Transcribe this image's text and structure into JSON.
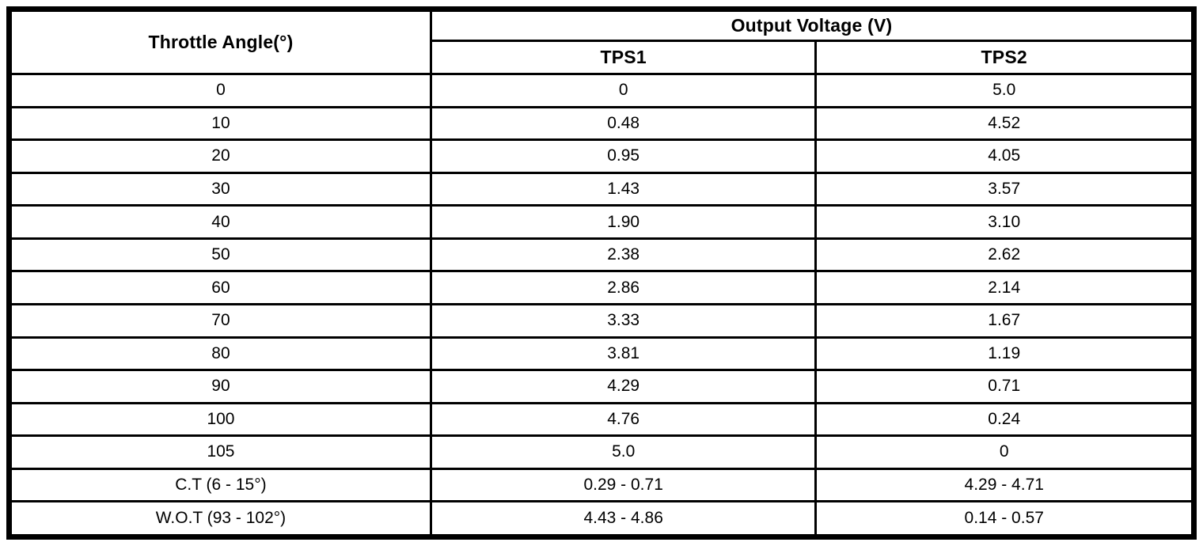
{
  "table": {
    "header": {
      "angle_label": "Throttle Angle(°)",
      "group_label": "Output Voltage (V)",
      "sub1_label": "TPS1",
      "sub2_label": "TPS2"
    },
    "rows": [
      {
        "angle": "0",
        "tps1": "0",
        "tps2": "5.0"
      },
      {
        "angle": "10",
        "tps1": "0.48",
        "tps2": "4.52"
      },
      {
        "angle": "20",
        "tps1": "0.95",
        "tps2": "4.05"
      },
      {
        "angle": "30",
        "tps1": "1.43",
        "tps2": "3.57"
      },
      {
        "angle": "40",
        "tps1": "1.90",
        "tps2": "3.10"
      },
      {
        "angle": "50",
        "tps1": "2.38",
        "tps2": "2.62"
      },
      {
        "angle": "60",
        "tps1": "2.86",
        "tps2": "2.14"
      },
      {
        "angle": "70",
        "tps1": "3.33",
        "tps2": "1.67"
      },
      {
        "angle": "80",
        "tps1": "3.81",
        "tps2": "1.19"
      },
      {
        "angle": "90",
        "tps1": "4.29",
        "tps2": "0.71"
      },
      {
        "angle": "100",
        "tps1": "4.76",
        "tps2": "0.24"
      },
      {
        "angle": "105",
        "tps1": "5.0",
        "tps2": "0"
      },
      {
        "angle": "C.T (6 - 15°)",
        "tps1": "0.29 - 0.71",
        "tps2": "4.29 - 4.71"
      },
      {
        "angle": "W.O.T (93 - 102°)",
        "tps1": "4.43 - 4.86",
        "tps2": "0.14 - 0.57"
      }
    ]
  },
  "chart_data": {
    "type": "table",
    "title": "Output Voltage (V)",
    "columns": [
      "Throttle Angle(°)",
      "TPS1",
      "TPS2"
    ],
    "x": [
      0,
      10,
      20,
      30,
      40,
      50,
      60,
      70,
      80,
      90,
      100,
      105
    ],
    "series": [
      {
        "name": "TPS1",
        "values": [
          0,
          0.48,
          0.95,
          1.43,
          1.9,
          2.38,
          2.86,
          3.33,
          3.81,
          4.29,
          4.76,
          5.0
        ]
      },
      {
        "name": "TPS2",
        "values": [
          5.0,
          4.52,
          4.05,
          3.57,
          3.1,
          2.62,
          2.14,
          1.67,
          1.19,
          0.71,
          0.24,
          0
        ]
      }
    ],
    "annotations": [
      {
        "label": "C.T (6 - 15°)",
        "tps1": "0.29 - 0.71",
        "tps2": "4.29 - 4.71"
      },
      {
        "label": "W.O.T (93 - 102°)",
        "tps1": "4.43 - 4.86",
        "tps2": "0.14 - 0.57"
      }
    ]
  },
  "colors": {
    "border": "#000000",
    "background": "#ffffff",
    "text": "#000000"
  }
}
